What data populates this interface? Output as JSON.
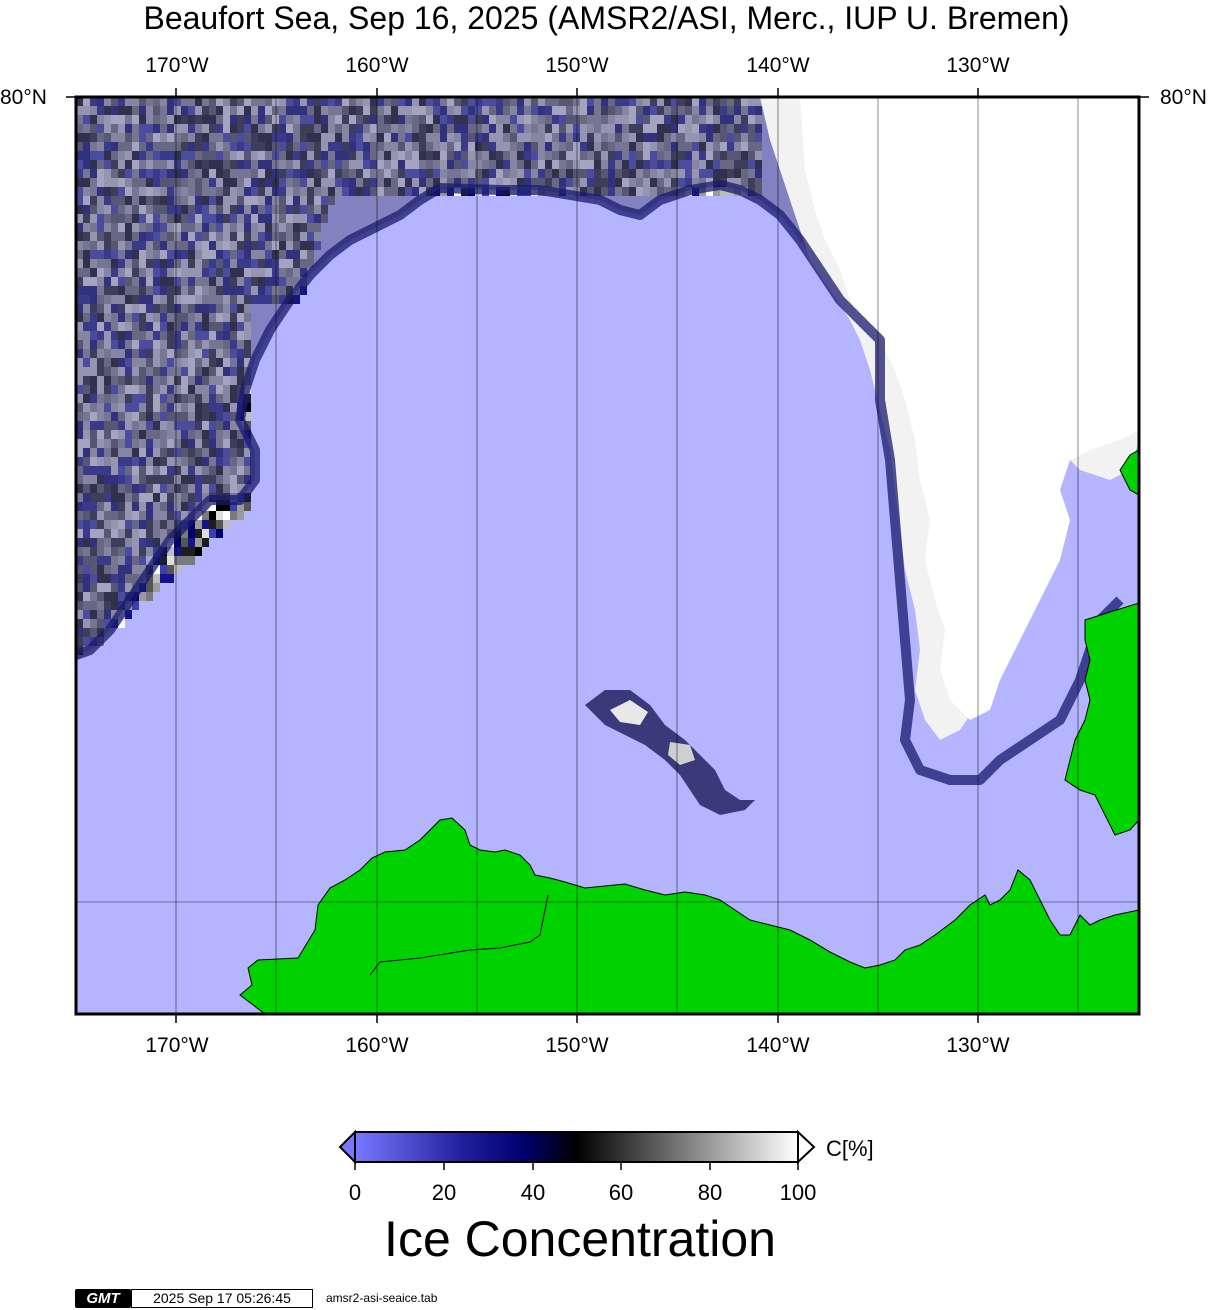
{
  "title": "Beaufort Sea, Sep 16, 2025 (AMSR2/ASI, Merc., IUP U. Bremen)",
  "map": {
    "projection": "Mercator",
    "lon_ticks": [
      "170°W",
      "160°W",
      "150°W",
      "140°W",
      "130°W"
    ],
    "lat_tick": "80°N",
    "water_color": "#b4b4ff",
    "land_color": "#00d200",
    "ice_high_color": "#ffffff"
  },
  "colorbar": {
    "ticks": [
      "0",
      "20",
      "40",
      "60",
      "80",
      "100"
    ],
    "unit": "C[%]",
    "title": "Ice Concentration",
    "colors": [
      "#7878ff",
      "#00006e",
      "#000000",
      "#ffffff"
    ]
  },
  "footer": {
    "logo": "GMT",
    "timestamp": "2025 Sep 17 05:26:45",
    "source_file": "amsr2-asi-seaice.tab"
  }
}
